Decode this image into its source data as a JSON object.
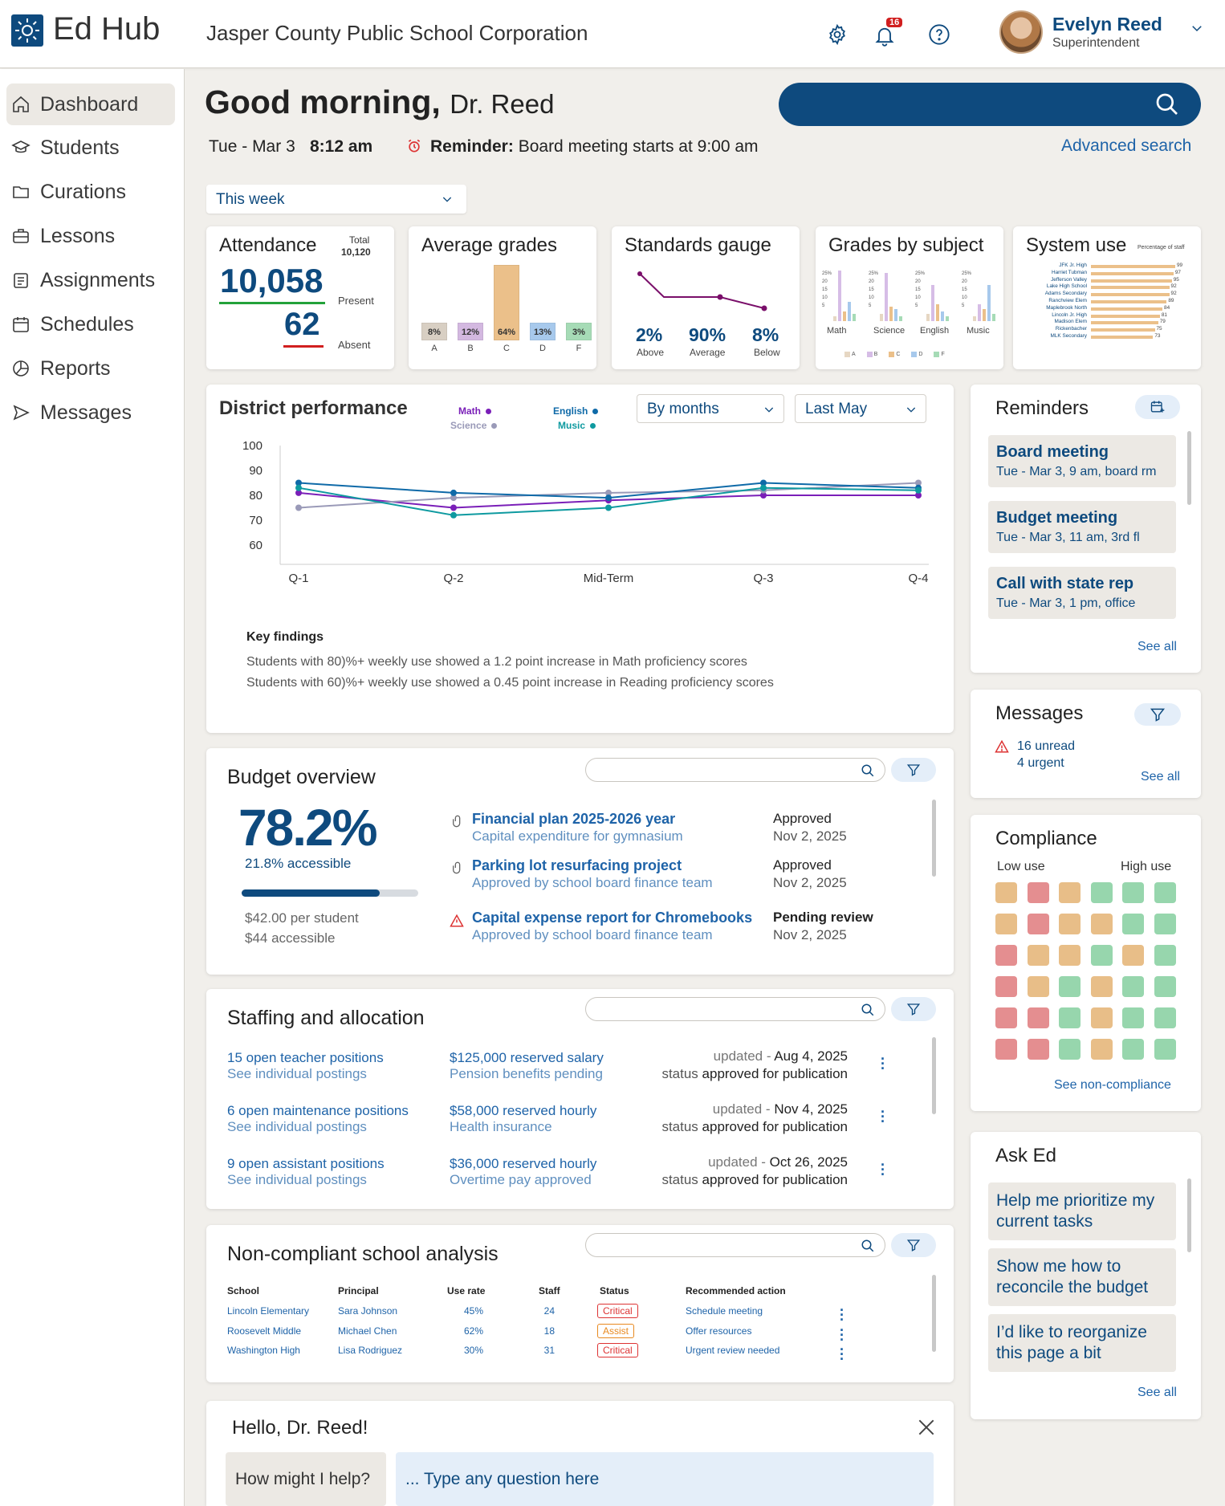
{
  "app": {
    "name": "Ed Hub",
    "org": "Jasper County Public School Corporation"
  },
  "header": {
    "notif_count": "16",
    "user_name": "Evelyn Reed",
    "user_role": "Superintendent"
  },
  "nav": [
    "Dashboard",
    "Students",
    "Curations",
    "Lessons",
    "Assignments",
    "Schedules",
    "Reports",
    "Messages"
  ],
  "greeting": {
    "hello": "Good morning,",
    "name": "Dr. Reed",
    "date": "Tue - Mar 3",
    "time": "8:12 am",
    "reminder_label": "Reminder:",
    "reminder_text": "Board meeting starts at 9:00 am",
    "advanced": "Advanced search",
    "period": "This week"
  },
  "kpi": {
    "attendance": {
      "title": "Attendance",
      "total_label": "Total",
      "total": "10,120",
      "present": "10,058",
      "present_label": "Present",
      "absent": "62",
      "absent_label": "Absent"
    },
    "grades": {
      "title": "Average grades",
      "bars": [
        {
          "label": "A",
          "pct": "8%",
          "value": 8,
          "color": "#d8cfc3"
        },
        {
          "label": "B",
          "pct": "12%",
          "value": 12,
          "color": "#d3b8e0"
        },
        {
          "label": "C",
          "pct": "64%",
          "value": 64,
          "color": "#ebc08a"
        },
        {
          "label": "D",
          "pct": "13%",
          "value": 13,
          "color": "#a7c9ec"
        },
        {
          "label": "F",
          "pct": "3%",
          "value": 3,
          "color": "#a6dbb6"
        }
      ]
    },
    "standards": {
      "title": "Standards gauge",
      "above": "2%",
      "above_label": "Above",
      "avg": "90%",
      "avg_label": "Average",
      "below": "8%",
      "below_label": "Below"
    },
    "subject": {
      "title": "Grades by subject",
      "subjects": [
        "Math",
        "Science",
        "English",
        "Music"
      ],
      "ticks": [
        "25%",
        "20",
        "15",
        "10",
        "5"
      ],
      "legend": [
        "A",
        "B",
        "C",
        "D",
        "F"
      ]
    },
    "system": {
      "title": "System use",
      "subtitle": "Percentage of staff",
      "schools": [
        {
          "name": "JFK Jr. High",
          "value": 99
        },
        {
          "name": "Harriet Tubman",
          "value": 97
        },
        {
          "name": "Jefferson Valley",
          "value": 95
        },
        {
          "name": "Lake High School",
          "value": 92
        },
        {
          "name": "Adams Secondary",
          "value": 92
        },
        {
          "name": "Ranchview Elem",
          "value": 89
        },
        {
          "name": "Maplebrook North",
          "value": 84
        },
        {
          "name": "Lincoln Jr. High",
          "value": 81
        },
        {
          "name": "Madison Elem",
          "value": 79
        },
        {
          "name": "Rickenbacher",
          "value": 75
        },
        {
          "name": "MLK Secondary",
          "value": 73
        }
      ]
    }
  },
  "district": {
    "title": "District performance",
    "by": "By months",
    "range": "Last May",
    "legend": [
      {
        "name": "Math",
        "color": "#7a1fb8"
      },
      {
        "name": "English",
        "color": "#0f6aa8"
      },
      {
        "name": "Science",
        "color": "#9a9ab8"
      },
      {
        "name": "Music",
        "color": "#0e9aa0"
      }
    ],
    "findings_title": "Key findings",
    "findings": [
      "Students with 80)%+ weekly use showed a 1.2 point increase in Math proficiency scores",
      "Students with 60)%+ weekly use showed a 0.45 point increase in Reading proficiency scores"
    ]
  },
  "chart_data": {
    "type": "line",
    "title": "District performance",
    "categories": [
      "Q-1",
      "Q-2",
      "Mid-Term",
      "Q-3",
      "Q-4"
    ],
    "ylim": [
      60,
      100
    ],
    "yticks": [
      100,
      90,
      80,
      70,
      60
    ],
    "series": [
      {
        "name": "Math",
        "color": "#7a1fb8",
        "values": [
          81,
          75,
          78,
          80,
          80
        ]
      },
      {
        "name": "Science",
        "color": "#9a9ab8",
        "values": [
          75,
          79,
          81,
          82,
          85
        ]
      },
      {
        "name": "English",
        "color": "#0f6aa8",
        "values": [
          85,
          81,
          79,
          85,
          83
        ]
      },
      {
        "name": "Music",
        "color": "#0e9aa0",
        "values": [
          83,
          72,
          75,
          83,
          82
        ]
      }
    ]
  },
  "reminders": {
    "title": "Reminders",
    "items": [
      {
        "title": "Board meeting",
        "sub": "Tue - Mar 3, 9 am, board rm"
      },
      {
        "title": "Budget meeting",
        "sub": "Tue - Mar 3, 11 am, 3rd fl"
      },
      {
        "title": "Call with state rep",
        "sub": "Tue - Mar 3, 1 pm, office"
      }
    ],
    "see_all": "See all"
  },
  "messages": {
    "title": "Messages",
    "unread": "16 unread",
    "urgent": "4 urgent",
    "see_all": "See all"
  },
  "compliance": {
    "title": "Compliance",
    "low": "Low use",
    "high": "High use",
    "link": "See non-compliance",
    "grid": [
      [
        "o",
        "r",
        "o",
        "g",
        "g",
        "g"
      ],
      [
        "o",
        "r",
        "o",
        "o",
        "g",
        "g"
      ],
      [
        "r",
        "o",
        "o",
        "g",
        "o",
        "g"
      ],
      [
        "r",
        "o",
        "g",
        "o",
        "g",
        "g"
      ],
      [
        "r",
        "r",
        "g",
        "o",
        "g",
        "g"
      ],
      [
        "r",
        "r",
        "g",
        "o",
        "g",
        "g"
      ]
    ]
  },
  "ask": {
    "title": "Ask Ed",
    "items": [
      "Help me prioritize my current tasks",
      "Show me how to reconcile the budget",
      "I’d like to reorganize this page a bit"
    ],
    "see_all": "See all"
  },
  "budget": {
    "title": "Budget overview",
    "pct": "78.2%",
    "pct_sub": "21.8% accessible",
    "progress": 0.782,
    "per_student": "$42.00 per student",
    "accessible": "$44 accessible",
    "items": [
      {
        "title": "Financial plan 2025-2026 year",
        "sub": "Capital expenditure for gymnasium",
        "status": "Approved",
        "date": "Nov 2, 2025"
      },
      {
        "title": "Parking lot resurfacing project",
        "sub": "Approved by school board finance team",
        "status": "Approved",
        "date": "Nov 2, 2025"
      },
      {
        "title": "Capital expense report for Chromebooks",
        "sub": "Approved by school board finance team",
        "status": "Pending review",
        "date": "Nov 2, 2025"
      }
    ]
  },
  "staffing": {
    "title": "Staffing and allocation",
    "rows": [
      {
        "a": "15 open teacher positions",
        "a2": "See individual postings",
        "b": "$125,000 reserved salary",
        "b2": "Pension benefits pending",
        "upd": "updated -",
        "date": "Aug 4, 2025",
        "st": "status",
        "stv": "approved for publication"
      },
      {
        "a": "6 open maintenance positions",
        "a2": "See individual postings",
        "b": "$58,000 reserved hourly",
        "b2": "Health insurance",
        "upd": "updated -",
        "date": "Nov 4, 2025",
        "st": "status",
        "stv": "approved for publication"
      },
      {
        "a": "9 open assistant positions",
        "a2": "See individual postings",
        "b": "$36,000 reserved hourly",
        "b2": "Overtime pay approved",
        "upd": "updated -",
        "date": "Oct 26, 2025",
        "st": "status",
        "stv": "approved for publication"
      }
    ]
  },
  "noncomp": {
    "title": "Non-compliant school analysis",
    "headers": [
      "School",
      "Principal",
      "Use rate",
      "Staff",
      "Status",
      "Recommended action"
    ],
    "rows": [
      {
        "school": "Lincoln Elementary",
        "principal": "Sara Johnson",
        "rate": "45%",
        "staff": "24",
        "status": "Critical",
        "action": "Schedule meeting"
      },
      {
        "school": "Roosevelt Middle",
        "principal": "Michael Chen",
        "rate": "62%",
        "staff": "18",
        "status": "Assist",
        "action": "Offer resources"
      },
      {
        "school": "Washington High",
        "principal": "Lisa Rodriguez",
        "rate": "30%",
        "staff": "31",
        "status": "Critical",
        "action": "Urgent review needed"
      }
    ]
  },
  "chat": {
    "title": "Hello, Dr. Reed!",
    "prompt": "How might I help?",
    "placeholder": "... Type any question here"
  }
}
